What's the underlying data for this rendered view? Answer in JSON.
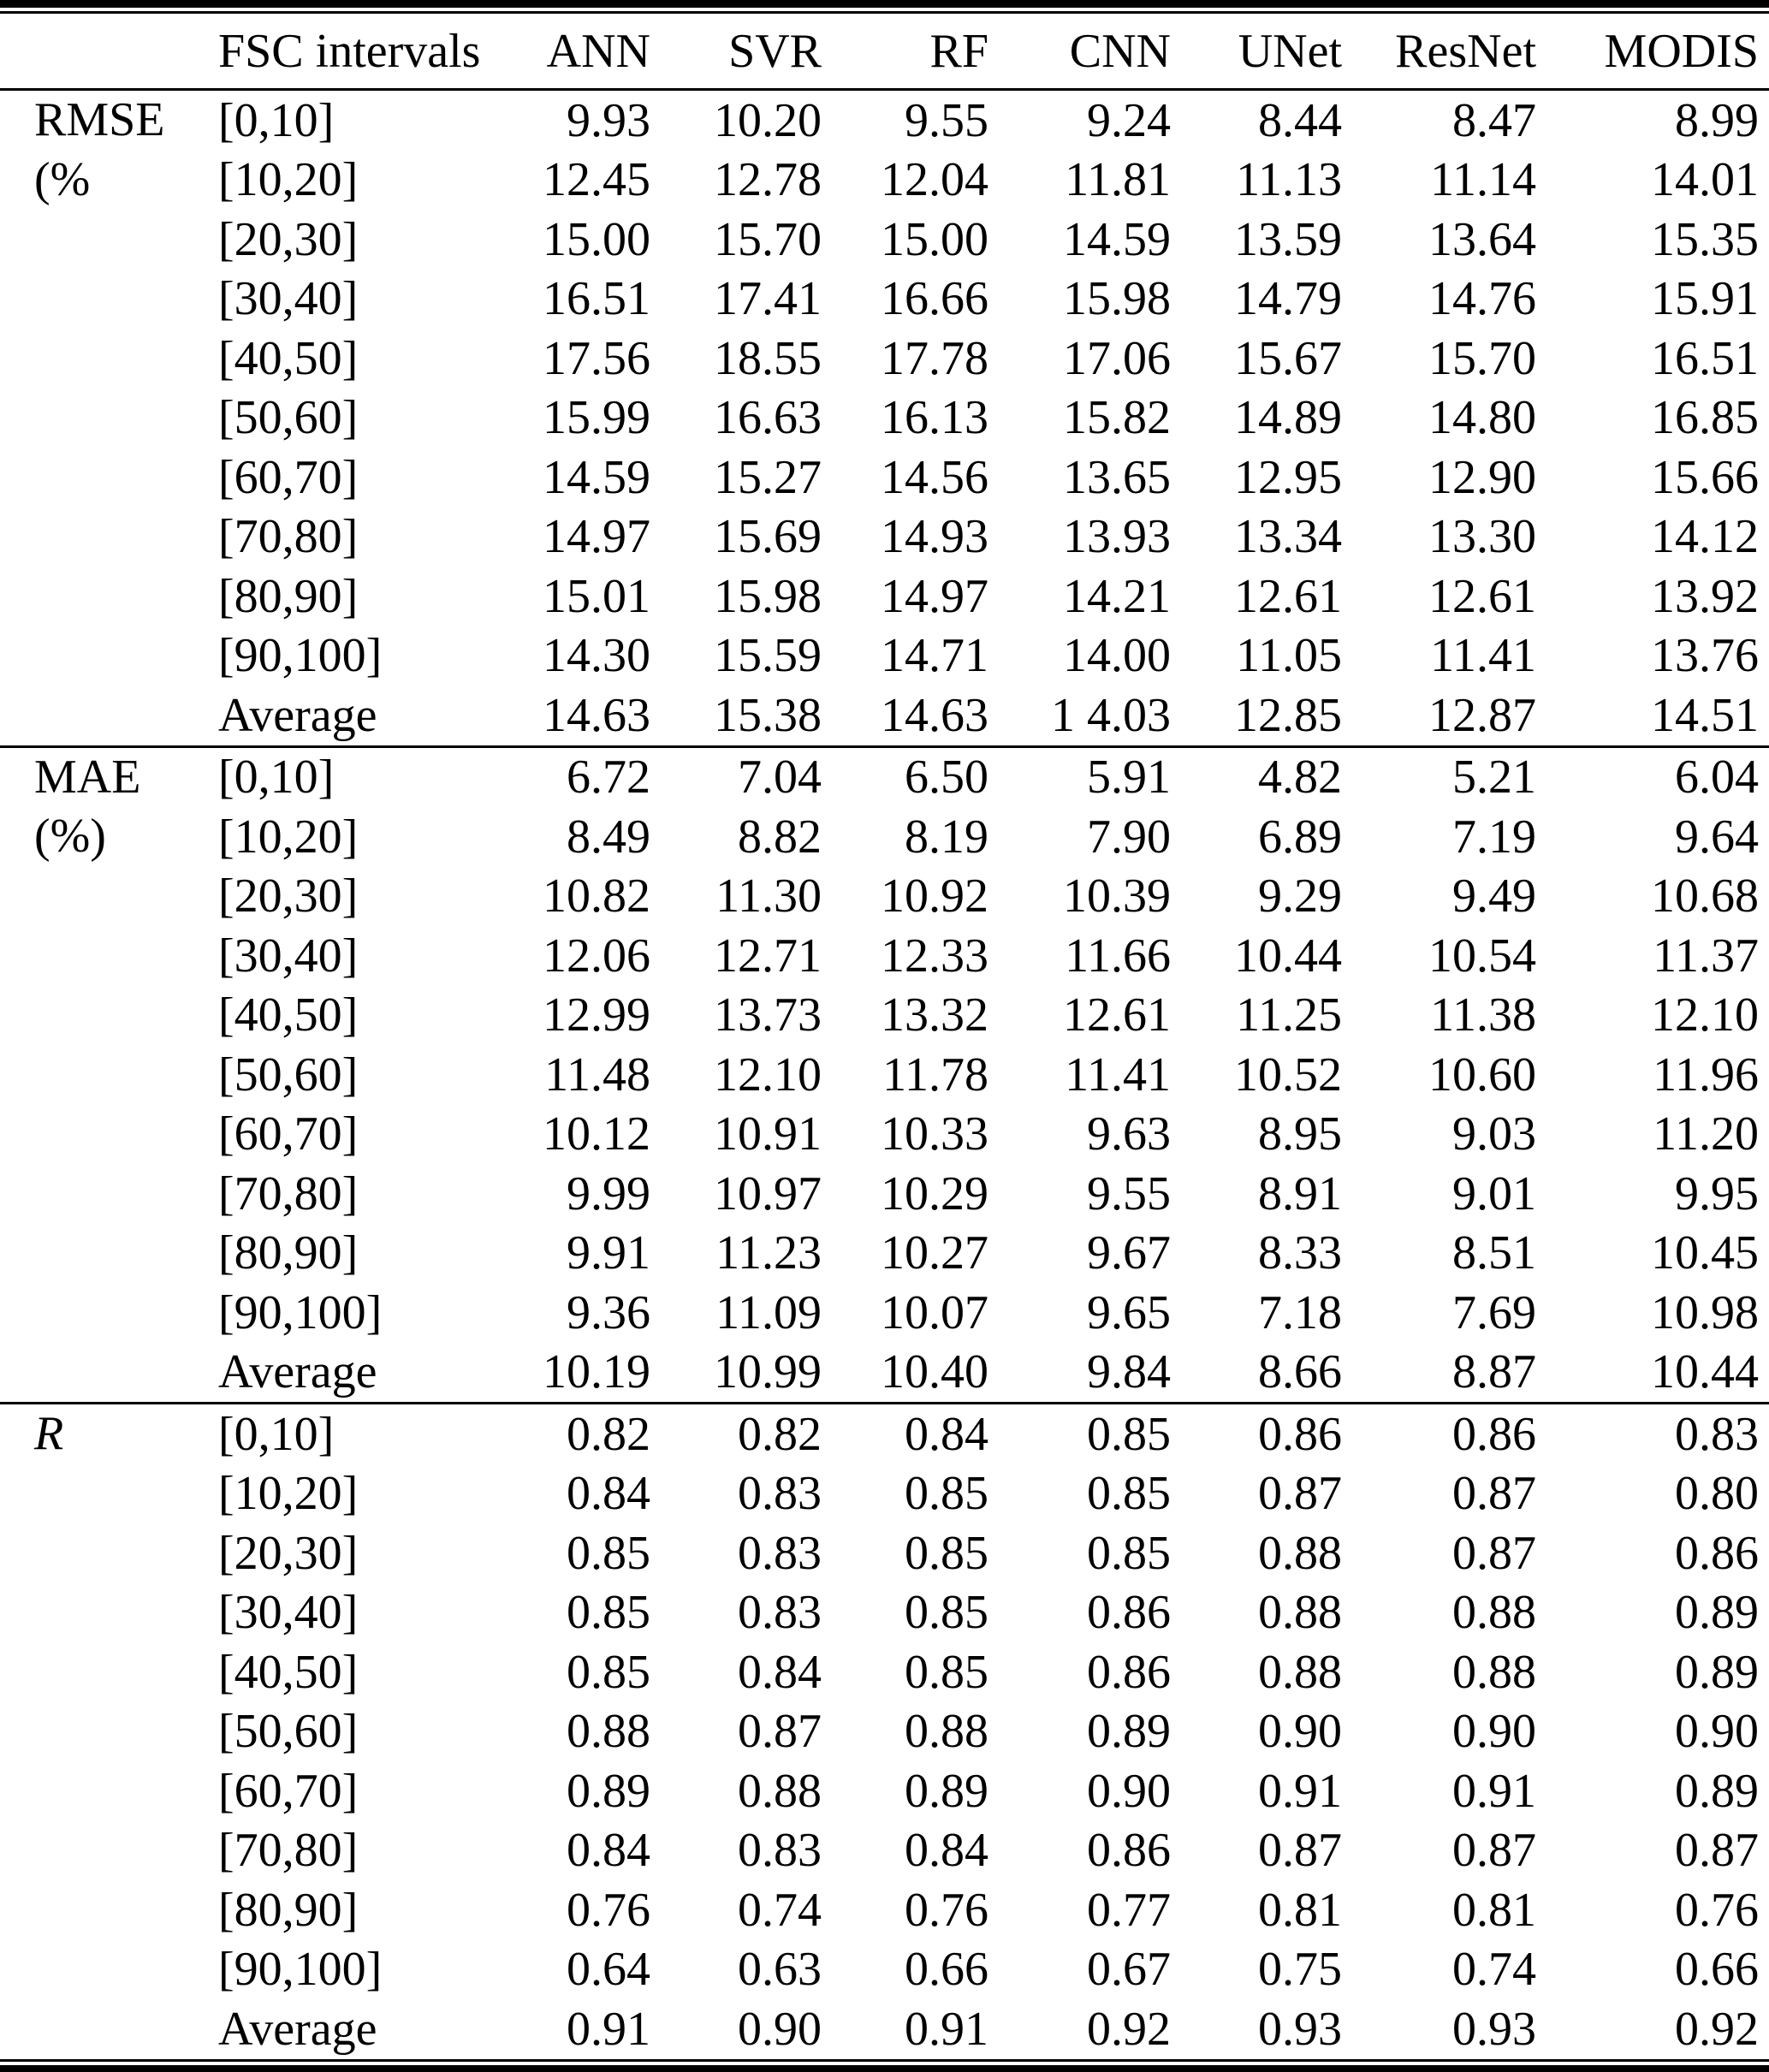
{
  "table": {
    "columns": [
      "FSC intervals",
      "ANN",
      "SVR",
      "RF",
      "CNN",
      "UNet",
      "ResNet",
      "MODIS"
    ],
    "sections": [
      {
        "metric": "RMSE",
        "label_lines": [
          "RMSE",
          "(%"
        ],
        "italic": false,
        "rows": [
          {
            "interval": "[0,10]",
            "values": [
              "9.93",
              "10.20",
              "9.55",
              "9.24",
              "8.44",
              "8.47",
              "8.99"
            ]
          },
          {
            "interval": "[10,20]",
            "values": [
              "12.45",
              "12.78",
              "12.04",
              "11.81",
              "11.13",
              "11.14",
              "14.01"
            ]
          },
          {
            "interval": "[20,30]",
            "values": [
              "15.00",
              "15.70",
              "15.00",
              "14.59",
              "13.59",
              "13.64",
              "15.35"
            ]
          },
          {
            "interval": "[30,40]",
            "values": [
              "16.51",
              "17.41",
              "16.66",
              "15.98",
              "14.79",
              "14.76",
              "15.91"
            ]
          },
          {
            "interval": "[40,50]",
            "values": [
              "17.56",
              "18.55",
              "17.78",
              "17.06",
              "15.67",
              "15.70",
              "16.51"
            ]
          },
          {
            "interval": "[50,60]",
            "values": [
              "15.99",
              "16.63",
              "16.13",
              "15.82",
              "14.89",
              "14.80",
              "16.85"
            ]
          },
          {
            "interval": "[60,70]",
            "values": [
              "14.59",
              "15.27",
              "14.56",
              "13.65",
              "12.95",
              "12.90",
              "15.66"
            ]
          },
          {
            "interval": "[70,80]",
            "values": [
              "14.97",
              "15.69",
              "14.93",
              "13.93",
              "13.34",
              "13.30",
              "14.12"
            ]
          },
          {
            "interval": "[80,90]",
            "values": [
              "15.01",
              "15.98",
              "14.97",
              "14.21",
              "12.61",
              "12.61",
              "13.92"
            ]
          },
          {
            "interval": "[90,100]",
            "values": [
              "14.30",
              "15.59",
              "14.71",
              "14.00",
              "11.05",
              "11.41",
              "13.76"
            ]
          },
          {
            "interval": "Average",
            "values": [
              "14.63",
              "15.38",
              "14.63",
              "1 4.03",
              "12.85",
              "12.87",
              "14.51"
            ]
          }
        ]
      },
      {
        "metric": "MAE",
        "label_lines": [
          "MAE",
          "(%)"
        ],
        "italic": false,
        "rows": [
          {
            "interval": "[0,10]",
            "values": [
              "6.72",
              "7.04",
              "6.50",
              "5.91",
              "4.82",
              "5.21",
              "6.04"
            ]
          },
          {
            "interval": "[10,20]",
            "values": [
              "8.49",
              "8.82",
              "8.19",
              "7.90",
              "6.89",
              "7.19",
              "9.64"
            ]
          },
          {
            "interval": "[20,30]",
            "values": [
              "10.82",
              "11.30",
              "10.92",
              "10.39",
              "9.29",
              "9.49",
              "10.68"
            ]
          },
          {
            "interval": "[30,40]",
            "values": [
              "12.06",
              "12.71",
              "12.33",
              "11.66",
              "10.44",
              "10.54",
              "11.37"
            ]
          },
          {
            "interval": "[40,50]",
            "values": [
              "12.99",
              "13.73",
              "13.32",
              "12.61",
              "11.25",
              "11.38",
              "12.10"
            ]
          },
          {
            "interval": "[50,60]",
            "values": [
              "11.48",
              "12.10",
              "11.78",
              "11.41",
              "10.52",
              "10.60",
              "11.96"
            ]
          },
          {
            "interval": "[60,70]",
            "values": [
              "10.12",
              "10.91",
              "10.33",
              "9.63",
              "8.95",
              "9.03",
              "11.20"
            ]
          },
          {
            "interval": "[70,80]",
            "values": [
              "9.99",
              "10.97",
              "10.29",
              "9.55",
              "8.91",
              "9.01",
              "9.95"
            ]
          },
          {
            "interval": "[80,90]",
            "values": [
              "9.91",
              "11.23",
              "10.27",
              "9.67",
              "8.33",
              "8.51",
              "10.45"
            ]
          },
          {
            "interval": "[90,100]",
            "values": [
              "9.36",
              "11.09",
              "10.07",
              "9.65",
              "7.18",
              "7.69",
              "10.98"
            ]
          },
          {
            "interval": "Average",
            "values": [
              "10.19",
              "10.99",
              "10.40",
              "9.84",
              "8.66",
              "8.87",
              "10.44"
            ]
          }
        ]
      },
      {
        "metric": "R",
        "label_lines": [
          "R"
        ],
        "italic": true,
        "rows": [
          {
            "interval": "[0,10]",
            "values": [
              "0.82",
              "0.82",
              "0.84",
              "0.85",
              "0.86",
              "0.86",
              "0.83"
            ]
          },
          {
            "interval": "[10,20]",
            "values": [
              "0.84",
              "0.83",
              "0.85",
              "0.85",
              "0.87",
              "0.87",
              "0.80"
            ]
          },
          {
            "interval": "[20,30]",
            "values": [
              "0.85",
              "0.83",
              "0.85",
              "0.85",
              "0.88",
              "0.87",
              "0.86"
            ]
          },
          {
            "interval": "[30,40]",
            "values": [
              "0.85",
              "0.83",
              "0.85",
              "0.86",
              "0.88",
              "0.88",
              "0.89"
            ]
          },
          {
            "interval": "[40,50]",
            "values": [
              "0.85",
              "0.84",
              "0.85",
              "0.86",
              "0.88",
              "0.88",
              "0.89"
            ]
          },
          {
            "interval": "[50,60]",
            "values": [
              "0.88",
              "0.87",
              "0.88",
              "0.89",
              "0.90",
              "0.90",
              "0.90"
            ]
          },
          {
            "interval": "[60,70]",
            "values": [
              "0.89",
              "0.88",
              "0.89",
              "0.90",
              "0.91",
              "0.91",
              "0.89"
            ]
          },
          {
            "interval": "[70,80]",
            "values": [
              "0.84",
              "0.83",
              "0.84",
              "0.86",
              "0.87",
              "0.87",
              "0.87"
            ]
          },
          {
            "interval": "[80,90]",
            "values": [
              "0.76",
              "0.74",
              "0.76",
              "0.77",
              "0.81",
              "0.81",
              "0.76"
            ]
          },
          {
            "interval": "[90,100]",
            "values": [
              "0.64",
              "0.63",
              "0.66",
              "0.67",
              "0.75",
              "0.74",
              "0.66"
            ]
          },
          {
            "interval": "Average",
            "values": [
              "0.91",
              "0.90",
              "0.91",
              "0.92",
              "0.93",
              "0.93",
              "0.92"
            ]
          }
        ]
      }
    ]
  }
}
